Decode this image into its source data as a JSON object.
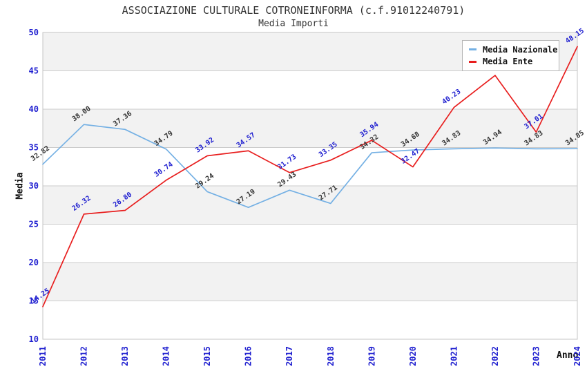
{
  "chart_data": {
    "type": "line",
    "title": "ASSOCIAZIONE CULTURALE COTRONEINFORMA (c.f.91012240791)",
    "subtitle": "Media Importi",
    "xlabel": "Anno",
    "ylabel": "Media",
    "x": [
      "2011",
      "2012",
      "2013",
      "2014",
      "2015",
      "2016",
      "2017",
      "2018",
      "2019",
      "2020",
      "2021",
      "2022",
      "2023",
      "2024"
    ],
    "ylim": [
      10,
      50
    ],
    "ytick_step": 5,
    "grid": "horizontal",
    "legend_position": "top-right",
    "series": [
      {
        "name": "Media Nazionale",
        "color": "#74b0e4",
        "label_color": "#333333",
        "values": [
          32.82,
          38.0,
          37.36,
          34.79,
          29.24,
          27.19,
          29.43,
          27.71,
          34.32,
          34.68,
          34.83,
          34.94,
          34.83,
          34.85
        ],
        "labels": [
          "32.82",
          "38.00",
          "37.36",
          "34.79",
          "29.24",
          "27.19",
          "29.43",
          "27.71",
          "34.32",
          "34.68",
          "34.83",
          "34.94",
          "34.83",
          "34.85"
        ]
      },
      {
        "name": "Media Ente",
        "color": "#e81e1e",
        "label_color": "#2020d0",
        "values": [
          14.25,
          26.32,
          26.8,
          30.74,
          33.92,
          34.57,
          31.73,
          33.35,
          35.94,
          32.47,
          40.23,
          44.4,
          37.01,
          48.15
        ],
        "labels": [
          "14.25",
          "26.32",
          "26.80",
          "30.74",
          "33.92",
          "34.57",
          "31.73",
          "33.35",
          "35.94",
          "32.47",
          "40.23",
          "",
          "37.01",
          "48.15"
        ]
      }
    ],
    "style": {
      "band_color": "#f2f2f2",
      "grid_color": "#cccccc",
      "frame_color": "#c4c4c4",
      "tick_label_color": "#2020d0",
      "text_color": "#333333"
    }
  }
}
